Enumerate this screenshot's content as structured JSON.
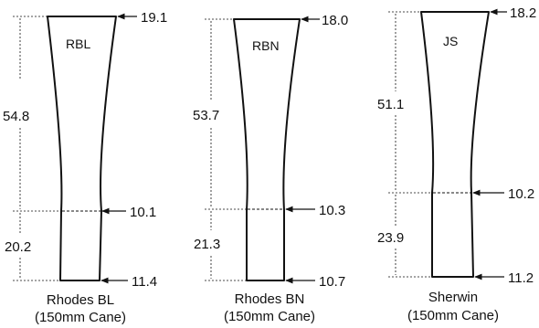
{
  "specimens": [
    {
      "code": "RBL",
      "name_line1": "Rhodes BL",
      "name_line2": "(150mm Cane)",
      "top_width": "19.1",
      "mid_width": "10.1",
      "bottom_width": "11.4",
      "upper_length": "54.8",
      "lower_length": "20.2"
    },
    {
      "code": "RBN",
      "name_line1": "Rhodes BN",
      "name_line2": "(150mm Cane)",
      "top_width": "18.0",
      "mid_width": "10.3",
      "bottom_width": "10.7",
      "upper_length": "53.7",
      "lower_length": "21.3"
    },
    {
      "code": "JS",
      "name_line1": "Sherwin",
      "name_line2": "(150mm Cane)",
      "top_width": "18.2",
      "mid_width": "10.2",
      "bottom_width": "11.2",
      "upper_length": "51.1",
      "lower_length": "23.9"
    }
  ]
}
